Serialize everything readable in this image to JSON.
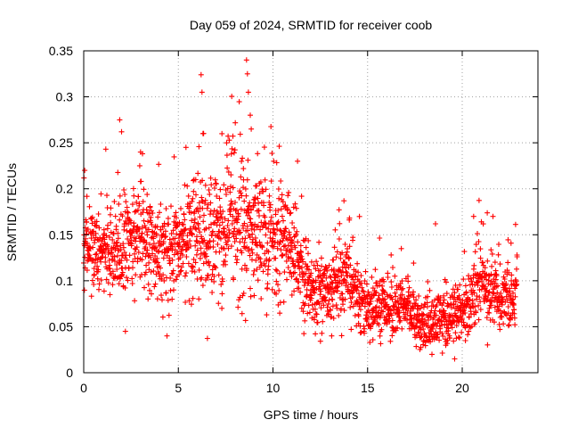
{
  "chart_data": {
    "type": "scatter",
    "title": "Day 059 of 2024, SRMTID for receiver coob",
    "xlabel": "GPS time / hours",
    "ylabel": "SRMTID / TECUs",
    "xlim": [
      0,
      24
    ],
    "ylim": [
      0,
      0.35
    ],
    "x_ticks": [
      0,
      5,
      10,
      15,
      20
    ],
    "y_ticks": [
      0,
      0.05,
      0.1,
      0.15,
      0.2,
      0.25,
      0.3,
      0.35
    ],
    "x_tick_labels": [
      "0",
      "5",
      "10",
      "15",
      "20"
    ],
    "y_tick_labels": [
      "0",
      "0.05",
      "0.1",
      "0.15",
      "0.2",
      "0.25",
      "0.3",
      "0.35"
    ],
    "grid": true,
    "marker": "+",
    "marker_color": "#ff0000",
    "series": [
      {
        "name": "SRMTID",
        "sampling_hours": 0.01,
        "x_range": [
          0,
          22.9
        ],
        "trend_knots_hours": [
          0,
          1,
          2,
          3,
          4,
          5,
          6,
          7,
          8,
          9,
          10,
          11,
          12,
          13,
          14,
          15,
          16,
          17,
          18,
          19,
          20,
          21,
          22,
          22.9
        ],
        "trend_knots_value": [
          0.14,
          0.13,
          0.14,
          0.15,
          0.12,
          0.14,
          0.15,
          0.14,
          0.16,
          0.15,
          0.15,
          0.14,
          0.09,
          0.09,
          0.1,
          0.07,
          0.07,
          0.07,
          0.05,
          0.06,
          0.06,
          0.1,
          0.08,
          0.09
        ],
        "spread_knots_value": [
          0.025,
          0.03,
          0.035,
          0.035,
          0.03,
          0.035,
          0.04,
          0.045,
          0.05,
          0.045,
          0.04,
          0.04,
          0.025,
          0.025,
          0.025,
          0.02,
          0.02,
          0.02,
          0.018,
          0.02,
          0.02,
          0.03,
          0.025,
          0.025
        ],
        "peaks": [
          {
            "x": 0.05,
            "y": 0.22
          },
          {
            "x": 1.9,
            "y": 0.275
          },
          {
            "x": 2.0,
            "y": 0.262
          },
          {
            "x": 2.2,
            "y": 0.045
          },
          {
            "x": 3.0,
            "y": 0.24
          },
          {
            "x": 4.4,
            "y": 0.04
          },
          {
            "x": 5.4,
            "y": 0.245
          },
          {
            "x": 6.2,
            "y": 0.324
          },
          {
            "x": 6.25,
            "y": 0.305
          },
          {
            "x": 6.3,
            "y": 0.26
          },
          {
            "x": 7.3,
            "y": 0.07
          },
          {
            "x": 8.6,
            "y": 0.34
          },
          {
            "x": 8.65,
            "y": 0.325
          },
          {
            "x": 8.7,
            "y": 0.305
          },
          {
            "x": 8.8,
            "y": 0.28
          },
          {
            "x": 8.85,
            "y": 0.265
          },
          {
            "x": 11.3,
            "y": 0.23
          },
          {
            "x": 13.1,
            "y": 0.04
          },
          {
            "x": 18.4,
            "y": 0.02
          },
          {
            "x": 19.6,
            "y": 0.015
          },
          {
            "x": 20.6,
            "y": 0.17
          }
        ]
      }
    ]
  }
}
